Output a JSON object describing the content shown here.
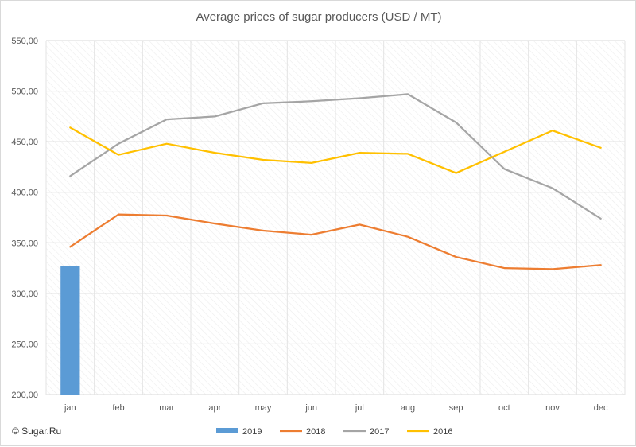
{
  "chart_data": {
    "type": "line",
    "title": "Average prices of sugar producers (USD / MT)",
    "categories": [
      "jan",
      "feb",
      "mar",
      "apr",
      "may",
      "jun",
      "jul",
      "aug",
      "sep",
      "oct",
      "nov",
      "dec"
    ],
    "ylim": [
      200,
      550
    ],
    "yticks": [
      "200,00",
      "250,00",
      "300,00",
      "350,00",
      "400,00",
      "450,00",
      "500,00",
      "550,00"
    ],
    "ytick_values": [
      200,
      250,
      300,
      350,
      400,
      450,
      500,
      550
    ],
    "grid": true,
    "legend_position": "bottom",
    "series": [
      {
        "name": "2019",
        "kind": "bar",
        "color": "#5b9bd5",
        "values": [
          327,
          null,
          null,
          null,
          null,
          null,
          null,
          null,
          null,
          null,
          null,
          null
        ]
      },
      {
        "name": "2018",
        "kind": "line",
        "color": "#ed7d31",
        "values": [
          346,
          378,
          377,
          369,
          362,
          358,
          368,
          356,
          336,
          325,
          324,
          328
        ]
      },
      {
        "name": "2017",
        "kind": "line",
        "color": "#a5a5a5",
        "values": [
          416,
          448,
          472,
          475,
          488,
          490,
          493,
          497,
          469,
          423,
          404,
          374
        ]
      },
      {
        "name": "2016",
        "kind": "line",
        "color": "#ffc000",
        "values": [
          464,
          437,
          448,
          439,
          432,
          429,
          439,
          438,
          419,
          440,
          461,
          444
        ]
      }
    ]
  },
  "watermark": "© Sugar.Ru"
}
